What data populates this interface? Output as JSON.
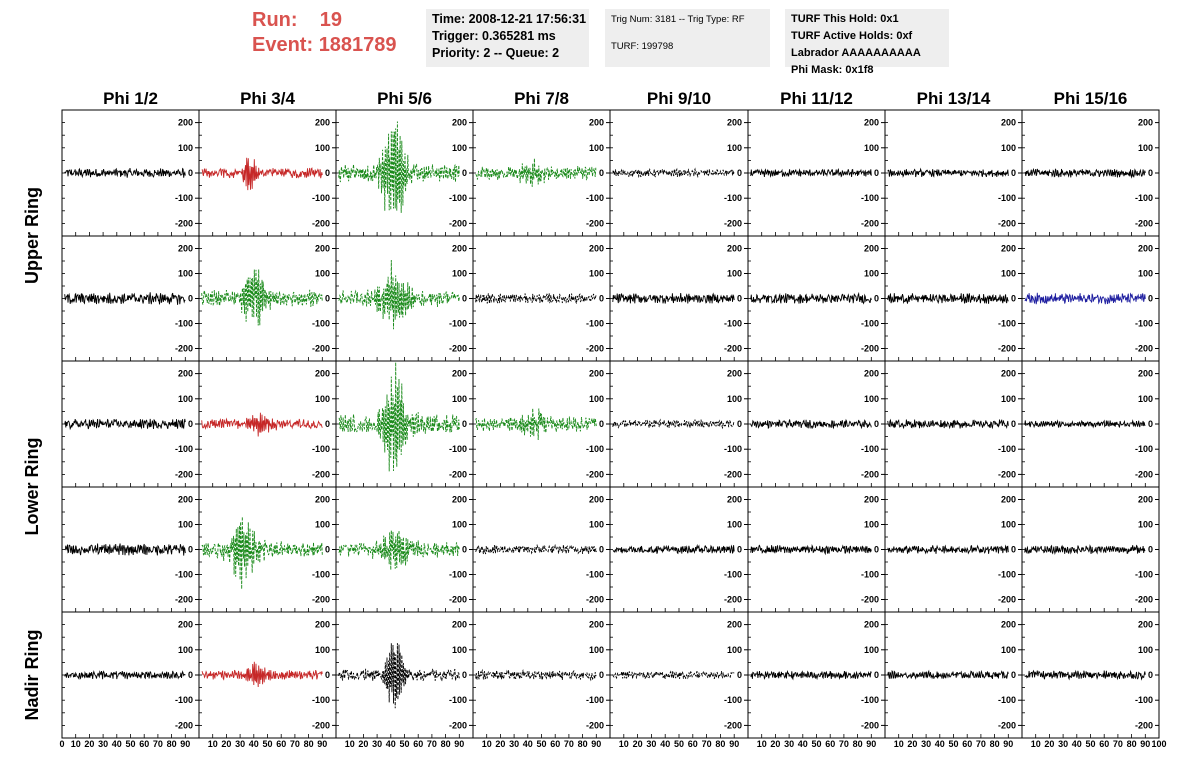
{
  "run_info": {
    "run_label": "Run:",
    "run_value": "19",
    "event_label": "Event:",
    "event_value": "1881789"
  },
  "time_box": {
    "time": "Time: 2008-12-21 17:56:31",
    "trigger": "Trigger: 0.365281 ms",
    "priority": "Priority: 2 -- Queue: 2"
  },
  "trig_box": {
    "trig": "Trig Num: 3181 -- Trig Type: RF",
    "turf": "TURF: 199798"
  },
  "turf_box": {
    "this_hold": "TURF This Hold: 0x1",
    "active_holds": "TURF Active Holds: 0xf",
    "labrador": "Labrador AAAAAAAAAA",
    "phi_mask": "Phi Mask: 0x1f8"
  },
  "colors": {
    "normal": "#000000",
    "red": "#c62828",
    "green": "#1a8a1a",
    "blue": "#1f1fa0",
    "run_text": "#d9534f",
    "info_bg": "#eeeeee"
  },
  "chart_data": {
    "type": "line",
    "columns": [
      "Phi 1/2",
      "Phi 3/4",
      "Phi 5/6",
      "Phi 7/8",
      "Phi 9/10",
      "Phi 11/12",
      "Phi 13/14",
      "Phi 15/16"
    ],
    "row_labels": [
      {
        "label": "Upper Ring",
        "rows": [
          0,
          1
        ]
      },
      {
        "label": "Lower Ring",
        "rows": [
          2,
          3
        ]
      },
      {
        "label": "Nadir Ring",
        "rows": [
          4
        ]
      }
    ],
    "xlim": [
      0,
      100
    ],
    "ylim": [
      -250,
      250
    ],
    "x_ticks": [
      "0",
      "10",
      "20",
      "30",
      "40",
      "50",
      "60",
      "70",
      "80",
      "90",
      "100"
    ],
    "y_ticks": [
      "200",
      "100",
      "0",
      "-100",
      "-200"
    ],
    "panels": [
      [
        {
          "style": "black-solid",
          "amp": 11,
          "burst": 0
        },
        {
          "style": "red",
          "amp": 12,
          "burst": 95,
          "center": 37,
          "width": 5
        },
        {
          "style": "green-dashed",
          "amp": 22,
          "burst": 240,
          "center": 42,
          "width": 10
        },
        {
          "style": "green-dashed",
          "amp": 16,
          "burst": 50,
          "center": 42,
          "width": 12
        },
        {
          "style": "black-dashed",
          "amp": 9,
          "burst": 0
        },
        {
          "style": "black-solid",
          "amp": 9,
          "burst": 0
        },
        {
          "style": "black-solid",
          "amp": 9,
          "burst": 0
        },
        {
          "style": "black-solid",
          "amp": 10,
          "burst": 0
        }
      ],
      [
        {
          "style": "black-solid",
          "amp": 14,
          "burst": 0
        },
        {
          "style": "green-dashed",
          "amp": 20,
          "burst": 150,
          "center": 40,
          "width": 10
        },
        {
          "style": "green-dashed",
          "amp": 20,
          "burst": 150,
          "center": 42,
          "width": 12
        },
        {
          "style": "black-dashed",
          "amp": 12,
          "burst": 0
        },
        {
          "style": "black-solid",
          "amp": 12,
          "burst": 0
        },
        {
          "style": "black-solid",
          "amp": 12,
          "burst": 0
        },
        {
          "style": "black-solid",
          "amp": 12,
          "burst": 0
        },
        {
          "style": "blue",
          "amp": 13,
          "burst": 0
        }
      ],
      [
        {
          "style": "black-solid",
          "amp": 12,
          "burst": 0
        },
        {
          "style": "red",
          "amp": 12,
          "burst": 45,
          "center": 45,
          "width": 10
        },
        {
          "style": "green-dashed",
          "amp": 25,
          "burst": 230,
          "center": 42,
          "width": 11
        },
        {
          "style": "green-dashed",
          "amp": 18,
          "burst": 55,
          "center": 45,
          "width": 12
        },
        {
          "style": "black-dashed",
          "amp": 10,
          "burst": 0
        },
        {
          "style": "black-solid",
          "amp": 10,
          "burst": 0
        },
        {
          "style": "black-solid",
          "amp": 10,
          "burst": 0
        },
        {
          "style": "black-solid",
          "amp": 8,
          "burst": 0
        }
      ],
      [
        {
          "style": "black-solid",
          "amp": 14,
          "burst": 0
        },
        {
          "style": "green-dashed",
          "amp": 20,
          "burst": 160,
          "center": 33,
          "width": 12
        },
        {
          "style": "green-dashed",
          "amp": 18,
          "burst": 90,
          "center": 43,
          "width": 14
        },
        {
          "style": "black-dashed",
          "amp": 11,
          "burst": 0
        },
        {
          "style": "black-solid",
          "amp": 10,
          "burst": 0
        },
        {
          "style": "black-solid",
          "amp": 10,
          "burst": 0
        },
        {
          "style": "black-solid",
          "amp": 10,
          "burst": 0
        },
        {
          "style": "black-solid",
          "amp": 10,
          "burst": 0
        }
      ],
      [
        {
          "style": "black-solid",
          "amp": 10,
          "burst": 0
        },
        {
          "style": "red",
          "amp": 11,
          "burst": 55,
          "center": 42,
          "width": 8
        },
        {
          "style": "black-dashed",
          "amp": 14,
          "burst": 170,
          "center": 43,
          "width": 8
        },
        {
          "style": "black-dashed",
          "amp": 11,
          "burst": 0
        },
        {
          "style": "black-dashed",
          "amp": 9,
          "burst": 0
        },
        {
          "style": "black-solid",
          "amp": 9,
          "burst": 0
        },
        {
          "style": "black-solid",
          "amp": 9,
          "burst": 0
        },
        {
          "style": "black-solid",
          "amp": 10,
          "burst": 0
        }
      ]
    ]
  }
}
